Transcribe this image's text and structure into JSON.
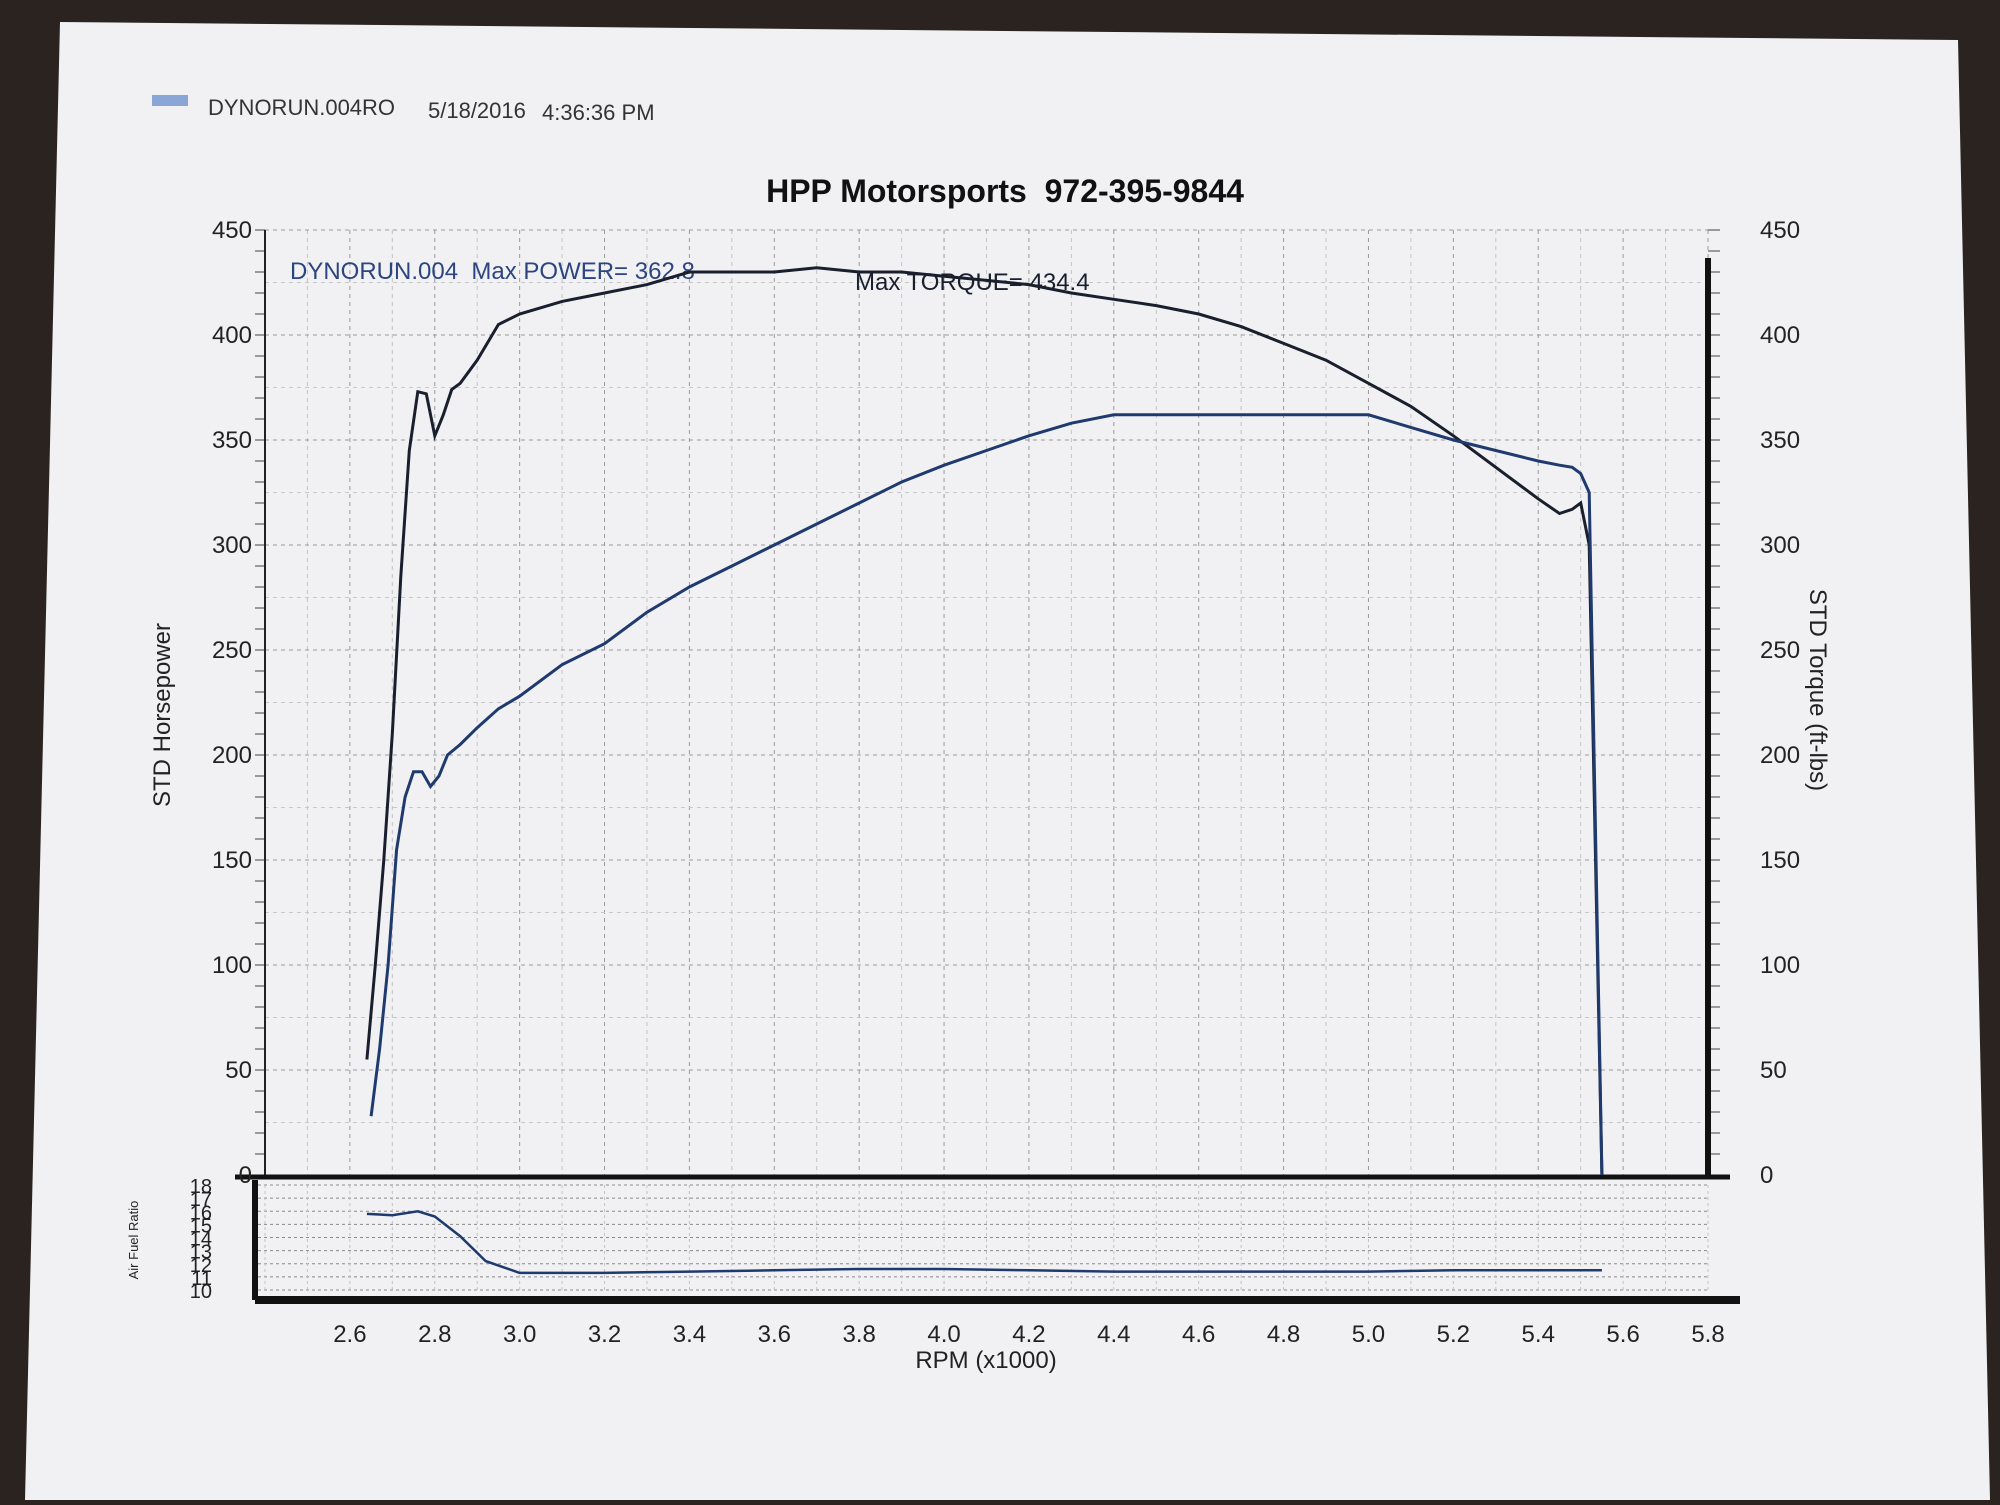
{
  "header": {
    "run_label": "DYNORUN.004RO",
    "date": "5/18/2016",
    "time": "4:36:36 PM",
    "legend_swatch_color": "#8aa6d6"
  },
  "chart_data": {
    "type": "line",
    "title": "HPP Motorsports  972-395-9844",
    "annotation_left": "DYNORUN.004  Max POWER= 362.8",
    "annotation_right": "Max TORQUE= 434.4",
    "xlabel": "RPM (x1000)",
    "ylabel_left": "STD Horsepower",
    "ylabel_right": "STD Torque (ft-lbs)",
    "afr_label": "Air Fuel Ratio",
    "xlim": [
      2.4,
      5.8
    ],
    "ylim": [
      0,
      450
    ],
    "x_ticks": [
      "2.6",
      "2.8",
      "3.0",
      "3.2",
      "3.4",
      "3.6",
      "3.8",
      "4.0",
      "4.2",
      "4.4",
      "4.6",
      "4.8",
      "5.0",
      "5.2",
      "5.4",
      "5.6",
      "5.8"
    ],
    "y_ticks_left": [
      "0",
      "50",
      "100",
      "150",
      "200",
      "250",
      "300",
      "350",
      "400",
      "450"
    ],
    "y_ticks_right": [
      "0",
      "50",
      "100",
      "150",
      "200",
      "250",
      "300",
      "350",
      "400",
      "450"
    ],
    "afr_ticks": [
      "10",
      "11",
      "12",
      "13",
      "14",
      "15",
      "16",
      "17",
      "18"
    ],
    "afr_ylim": [
      10,
      18
    ],
    "grid": true,
    "series": [
      {
        "key": "power",
        "color": "#1f3a6e",
        "x": [
          2.65,
          2.67,
          2.69,
          2.71,
          2.73,
          2.75,
          2.77,
          2.79,
          2.81,
          2.83,
          2.86,
          2.9,
          2.95,
          3.0,
          3.1,
          3.2,
          3.3,
          3.4,
          3.5,
          3.6,
          3.7,
          3.8,
          3.9,
          4.0,
          4.1,
          4.2,
          4.3,
          4.4,
          4.5,
          4.6,
          4.7,
          4.8,
          4.9,
          5.0,
          5.1,
          5.2,
          5.3,
          5.4,
          5.45,
          5.48,
          5.5,
          5.52,
          5.55
        ],
        "values": [
          28,
          60,
          100,
          155,
          180,
          192,
          192,
          185,
          190,
          200,
          205,
          213,
          222,
          228,
          243,
          253,
          268,
          280,
          290,
          300,
          310,
          320,
          330,
          338,
          345,
          352,
          358,
          362,
          362,
          362,
          362,
          362,
          362,
          362,
          356,
          350,
          345,
          340,
          338,
          337,
          334,
          325,
          0
        ]
      },
      {
        "key": "torque",
        "color": "#1a1f2e",
        "x": [
          2.64,
          2.66,
          2.68,
          2.7,
          2.72,
          2.74,
          2.76,
          2.78,
          2.8,
          2.82,
          2.84,
          2.86,
          2.9,
          2.95,
          3.0,
          3.1,
          3.2,
          3.3,
          3.4,
          3.5,
          3.6,
          3.7,
          3.8,
          3.9,
          4.0,
          4.1,
          4.2,
          4.3,
          4.4,
          4.5,
          4.6,
          4.7,
          4.8,
          4.9,
          5.0,
          5.1,
          5.2,
          5.3,
          5.4,
          5.45,
          5.48,
          5.5,
          5.52,
          5.55
        ],
        "values": [
          55,
          100,
          150,
          210,
          285,
          345,
          373,
          372,
          352,
          362,
          374,
          377,
          388,
          405,
          410,
          416,
          420,
          424,
          430,
          430,
          430,
          432,
          430,
          430,
          428,
          426,
          424,
          420,
          417,
          414,
          410,
          404,
          396,
          388,
          377,
          366,
          352,
          337,
          322,
          315,
          317,
          320,
          300,
          0
        ]
      },
      {
        "key": "afr",
        "color": "#1f3a6e",
        "x": [
          2.64,
          2.7,
          2.76,
          2.8,
          2.86,
          2.92,
          3.0,
          3.2,
          3.4,
          3.6,
          3.8,
          4.0,
          4.2,
          4.4,
          4.6,
          4.8,
          5.0,
          5.2,
          5.4,
          5.55
        ],
        "values": [
          15.8,
          15.7,
          16.0,
          15.6,
          14.1,
          12.2,
          11.3,
          11.3,
          11.4,
          11.5,
          11.6,
          11.6,
          11.5,
          11.4,
          11.4,
          11.4,
          11.4,
          11.5,
          11.5,
          11.5
        ]
      }
    ]
  }
}
